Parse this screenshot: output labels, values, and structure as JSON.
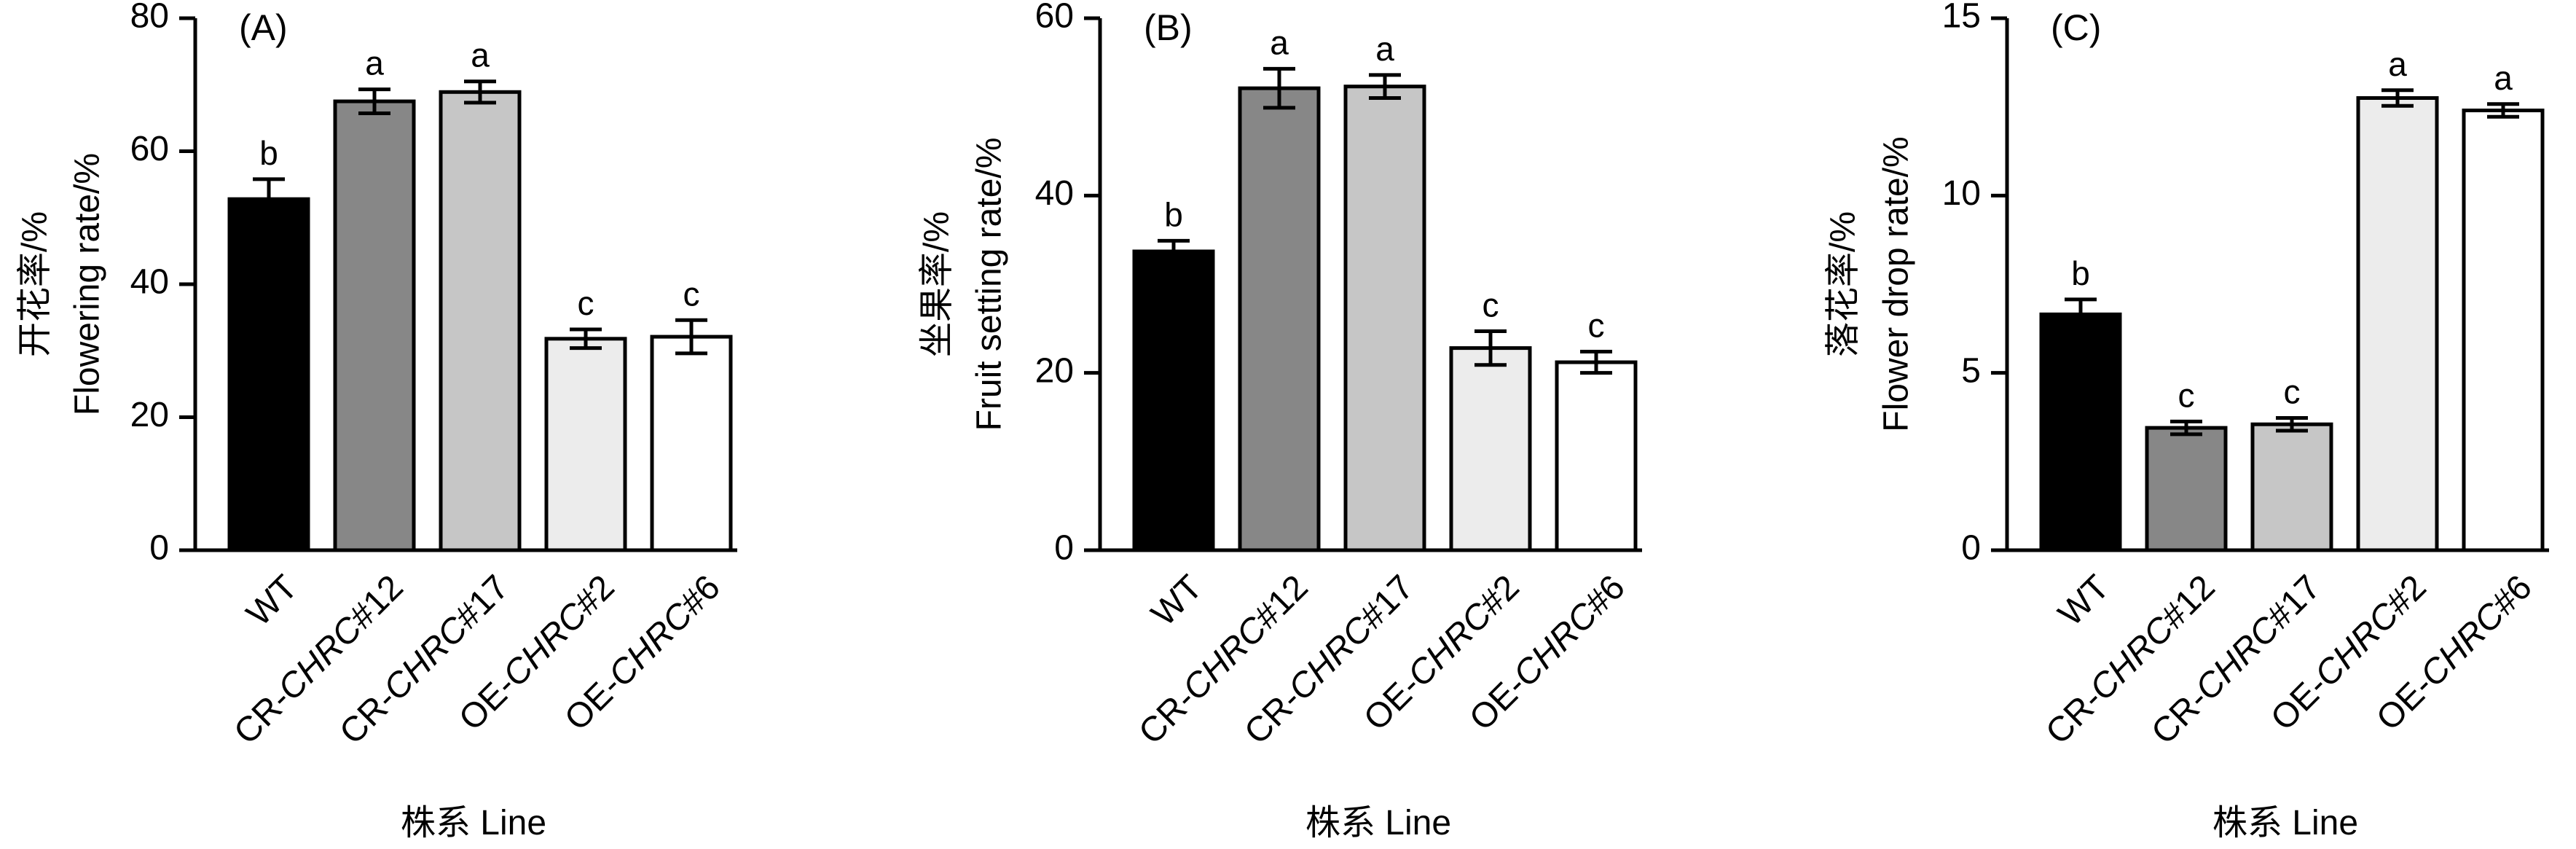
{
  "figure": {
    "x_category_label": "株系 Line"
  },
  "chart_data": [
    {
      "type": "bar",
      "panel_label": "(A)",
      "ylabel_cn": "开花率/%",
      "ylabel_en": "Flowering rate/%",
      "xlabel": "株系 Line",
      "ylim": [
        0,
        80
      ],
      "yticks": [
        0,
        20,
        40,
        60,
        80
      ],
      "categories": [
        {
          "prefix": "WT",
          "italic": ""
        },
        {
          "prefix": "CR-",
          "italic": "CHRC",
          "suffix": "#12"
        },
        {
          "prefix": "CR-",
          "italic": "CHRC",
          "suffix": "#17"
        },
        {
          "prefix": "OE-",
          "italic": "CHRC",
          "suffix": "#2"
        },
        {
          "prefix": "OE-",
          "italic": "CHRC",
          "suffix": "#6"
        }
      ],
      "values": [
        52.8,
        67.5,
        68.9,
        31.8,
        32.1
      ],
      "errors": [
        3.0,
        1.8,
        1.6,
        1.4,
        2.5
      ],
      "letters": [
        "b",
        "a",
        "a",
        "c",
        "c"
      ],
      "colors": [
        "#000000",
        "#878787",
        "#c6c6c6",
        "#ececec",
        "#ffffff"
      ],
      "grid": false
    },
    {
      "type": "bar",
      "panel_label": "(B)",
      "ylabel_cn": "坐果率/%",
      "ylabel_en": "Fruit setting rate/%",
      "xlabel": "株系 Line",
      "ylim": [
        0,
        60
      ],
      "yticks": [
        0,
        20,
        40,
        60
      ],
      "categories": [
        {
          "prefix": "WT",
          "italic": ""
        },
        {
          "prefix": "CR-",
          "italic": "CHRC",
          "suffix": "#12"
        },
        {
          "prefix": "CR-",
          "italic": "CHRC",
          "suffix": "#17"
        },
        {
          "prefix": "OE-",
          "italic": "CHRC",
          "suffix": "#2"
        },
        {
          "prefix": "OE-",
          "italic": "CHRC",
          "suffix": "#6"
        }
      ],
      "values": [
        33.7,
        52.1,
        52.3,
        22.8,
        21.2
      ],
      "errors": [
        1.2,
        2.2,
        1.3,
        1.9,
        1.2
      ],
      "letters": [
        "b",
        "a",
        "a",
        "c",
        "c"
      ],
      "colors": [
        "#000000",
        "#878787",
        "#c6c6c6",
        "#ececec",
        "#ffffff"
      ],
      "grid": false
    },
    {
      "type": "bar",
      "panel_label": "(C)",
      "ylabel_cn": "落花率/%",
      "ylabel_en": "Flower drop rate/%",
      "xlabel": "株系 Line",
      "ylim": [
        0,
        15
      ],
      "yticks": [
        0,
        5,
        10,
        15
      ],
      "categories": [
        {
          "prefix": "WT",
          "italic": ""
        },
        {
          "prefix": "CR-",
          "italic": "CHRC",
          "suffix": "#12"
        },
        {
          "prefix": "CR-",
          "italic": "CHRC",
          "suffix": "#17"
        },
        {
          "prefix": "OE-",
          "italic": "CHRC",
          "suffix": "#2"
        },
        {
          "prefix": "OE-",
          "italic": "CHRC",
          "suffix": "#6"
        }
      ],
      "values": [
        6.65,
        3.45,
        3.55,
        12.75,
        12.4
      ],
      "errors": [
        0.42,
        0.18,
        0.18,
        0.22,
        0.18
      ],
      "letters": [
        "b",
        "c",
        "c",
        "a",
        "a"
      ],
      "colors": [
        "#000000",
        "#878787",
        "#c6c6c6",
        "#ececec",
        "#ffffff"
      ],
      "grid": false
    }
  ]
}
